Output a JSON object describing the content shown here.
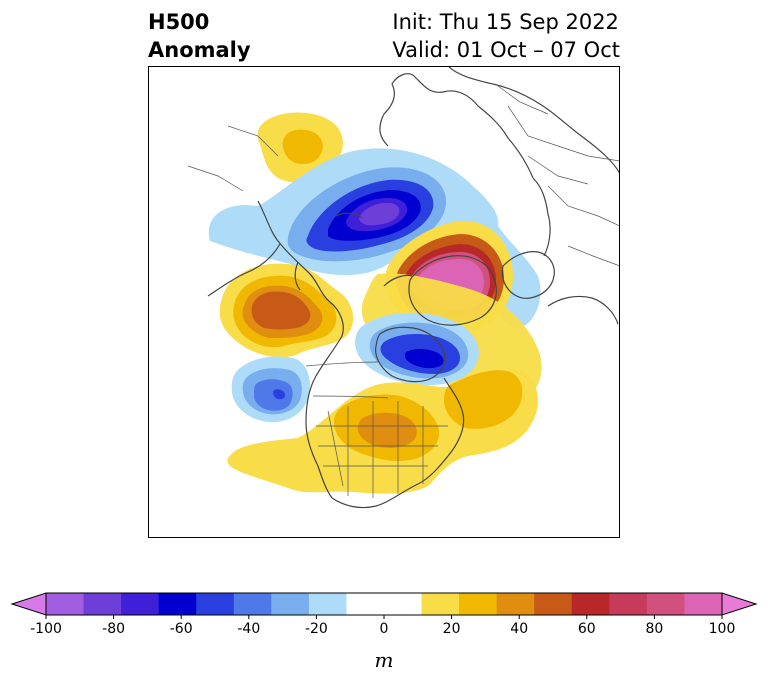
{
  "title": {
    "left_line1": "H500",
    "left_line2": "Anomaly",
    "init": "Init: Thu 15 Sep 2022",
    "valid": "Valid: 01 Oct – 07 Oct"
  },
  "colorbar": {
    "unit_label": "m",
    "ticks": [
      "-100",
      "-80",
      "-60",
      "-40",
      "-20",
      "0",
      "20",
      "40",
      "60",
      "80",
      "100"
    ],
    "colors": [
      "#d67ae8",
      "#a15ee0",
      "#6e3fd8",
      "#3f1fd8",
      "#0000d0",
      "#2a3fe0",
      "#4f78e8",
      "#78aeee",
      "#aedcf8",
      "#ffffff",
      "#ffffff",
      "#f8dc48",
      "#f0b800",
      "#e08e10",
      "#c85a18",
      "#b82828",
      "#c83a5a",
      "#d2507e",
      "#dc64b4",
      "#e87ad8"
    ],
    "extend": "both"
  },
  "map": {
    "projection": "polar stereographic, North America / Arctic",
    "features": [
      "H500 anomaly contours",
      "coastlines",
      "country borders",
      "US state borders"
    ]
  }
}
